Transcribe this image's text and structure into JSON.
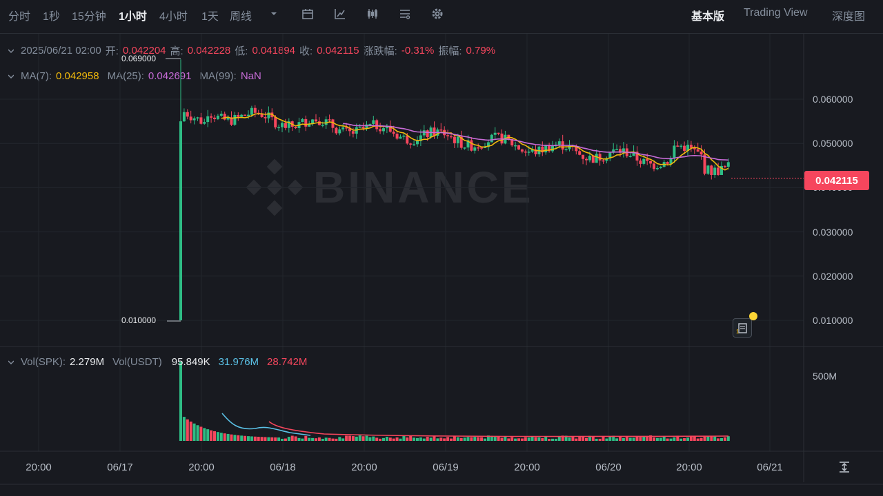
{
  "toolbar": {
    "timeframes": [
      "分时",
      "1秒",
      "15分钟",
      "1小时",
      "4小时",
      "1天",
      "周线"
    ],
    "active_timeframe": "1小时",
    "icons": [
      "chevron-down-icon",
      "calendar-icon",
      "indicator-icon",
      "candle-type-icon",
      "layout-icon",
      "gear-icon"
    ],
    "views": [
      "基本版",
      "Trading View",
      "深度图"
    ],
    "active_view": "基本版"
  },
  "ohlc": {
    "date": "2025/06/21 02:00",
    "open_label": "开:",
    "open": "0.042204",
    "high_label": "高:",
    "high": "0.042228",
    "low_label": "低:",
    "low": "0.041894",
    "close_label": "收:",
    "close": "0.042115",
    "change_label": "涨跌幅:",
    "change": "-0.31%",
    "amp_label": "振幅:",
    "amp": "0.79%"
  },
  "ma": {
    "ma7_label": "MA(7):",
    "ma7": "0.042958",
    "ma25_label": "MA(25):",
    "ma25": "0.042691",
    "ma99_label": "MA(99):",
    "ma99": "NaN"
  },
  "volume": {
    "vol_spk_label": "Vol(SPK):",
    "vol_spk": "2.279M",
    "vol_usdt_label": "Vol(USDT)",
    "vol_usdt": "95.849K",
    "ma_a": "31.976M",
    "ma_b": "28.742M",
    "axis_label": "500M"
  },
  "chart_data": {
    "type": "candlestick",
    "y_ticks": [
      "0.060000",
      "0.050000",
      "0.040000",
      "0.030000",
      "0.020000",
      "0.010000"
    ],
    "x_ticks": [
      "20:00",
      "06/17",
      "20:00",
      "06/18",
      "20:00",
      "06/19",
      "20:00",
      "06/20",
      "20:00",
      "06/21"
    ],
    "high_annotation": "0.069000",
    "low_annotation": "0.010000",
    "current_price": "0.042115",
    "colors": {
      "up": "#2ebd85",
      "down": "#f6465d",
      "ma7": "#f0b90b",
      "ma25": "#c86cd8",
      "vol_ma_a": "#5bc2e7",
      "vol_ma_b": "#f6465d"
    }
  },
  "watermark": "BINANCE"
}
